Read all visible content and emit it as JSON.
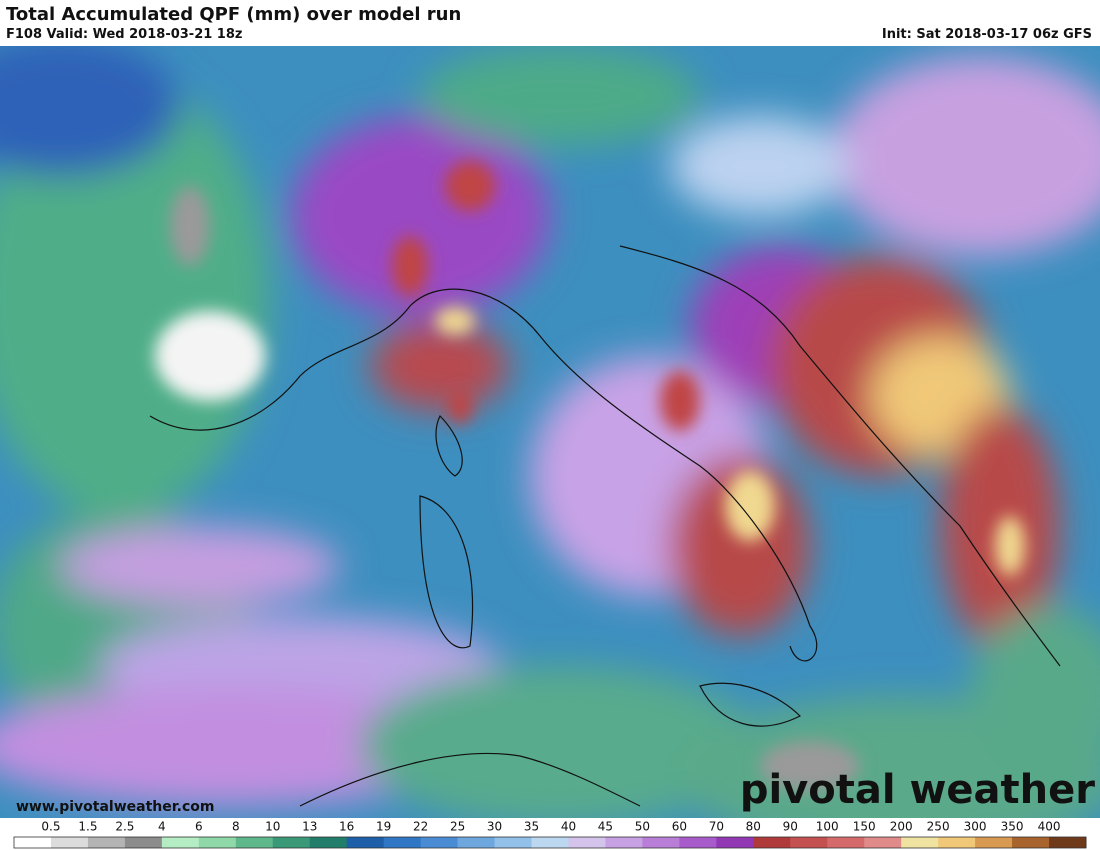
{
  "header": {
    "title": "Total Accumulated QPF (mm) over model run",
    "valid": "F108 Valid: Wed 2018-03-21 18z",
    "init": "Init: Sat 2018-03-17 06z GFS"
  },
  "watermark": {
    "website": "www.pivotalweather.com",
    "logo": "pivotal weather"
  },
  "colorbar": {
    "labels": [
      "0.5",
      "1.5",
      "2.5",
      "4",
      "6",
      "8",
      "10",
      "13",
      "16",
      "19",
      "22",
      "25",
      "30",
      "35",
      "40",
      "45",
      "50",
      "60",
      "70",
      "80",
      "90",
      "100",
      "150",
      "200",
      "250",
      "300",
      "350",
      "400"
    ],
    "colors": [
      "#ffffff",
      "#dcdcdc",
      "#b4b4b4",
      "#8c8c8c",
      "#b4ecc4",
      "#8fd8a8",
      "#5fb88c",
      "#3a9a78",
      "#217e6a",
      "#1d5fa8",
      "#2f76c4",
      "#4a8cd4",
      "#6ea6de",
      "#92c0e8",
      "#bcd8f0",
      "#d4c4ec",
      "#c8a0e4",
      "#b87ed8",
      "#a85ccc",
      "#9238b4",
      "#b03a3a",
      "#c45050",
      "#d46a6a",
      "#e08a8a",
      "#f0e2a0",
      "#f0c878",
      "#d89a50",
      "#a8642c",
      "#6e3a1a"
    ]
  }
}
